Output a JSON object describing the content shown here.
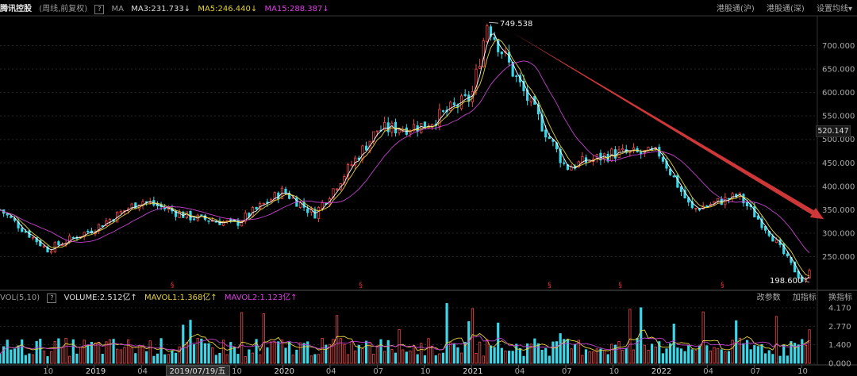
{
  "header": {
    "stock_name": "腾讯控股",
    "mode": "(周线,前复权)",
    "help_icon": "?",
    "ma_label": "MA",
    "ma3": "MA3:231.733↓",
    "ma5": "MA5:246.440↓",
    "ma15": "MA15:288.387↓",
    "links": [
      "港股通(沪)",
      "港股通(深)",
      "设置均线▾"
    ]
  },
  "volume_header": {
    "label": "VOL(5,10)",
    "help_icon": "?",
    "volume": "VOLUME:2.512亿↑",
    "mavol1": "MAVOL1:1.368亿↑",
    "mavol2": "MAVOL2:1.123亿↑",
    "links": [
      "改参数",
      "加指标",
      "换指标"
    ]
  },
  "annotations": {
    "high": "749.538",
    "low": "198.600",
    "current_price": "520.147",
    "cursor_date": "2019/07/19/五",
    "dividend_marker": "§"
  },
  "colors": {
    "up": "#f04848",
    "down": "#3ad7e8",
    "ma3": "#ffffff",
    "ma5": "#e6d23a",
    "ma15": "#c640d0",
    "trend_arrow": "#e03c3c"
  },
  "chart_data": [
    {
      "type": "candlestick",
      "title": "",
      "yticks": [
        250,
        300,
        350,
        400,
        450,
        500,
        550,
        600,
        650,
        700
      ],
      "ytick_labels": [
        "250.000",
        "300.000",
        "350.000",
        "400.000",
        "450.000",
        "500.000",
        "550.000",
        "600.000",
        "650.000",
        "700.000"
      ],
      "ylim": [
        195,
        760
      ],
      "xtick_labels": [
        "10",
        "2019",
        "04",
        "07",
        "10",
        "2020",
        "04",
        "07",
        "10",
        "2021",
        "04",
        "07",
        "10",
        "2022",
        "04",
        "07",
        "10"
      ],
      "price_path_approx": [
        {
          "date": "2018-07",
          "close": 350
        },
        {
          "date": "2018-10",
          "close": 265
        },
        {
          "date": "2019-01",
          "close": 310
        },
        {
          "date": "2019-04",
          "close": 370
        },
        {
          "date": "2019-07",
          "close": 335
        },
        {
          "date": "2019-10",
          "close": 320
        },
        {
          "date": "2020-01",
          "close": 390
        },
        {
          "date": "2020-03",
          "close": 340
        },
        {
          "date": "2020-07",
          "close": 520
        },
        {
          "date": "2020-10",
          "close": 530
        },
        {
          "date": "2021-01",
          "close": 590
        },
        {
          "date": "2021-02",
          "close": 749.538
        },
        {
          "date": "2021-04",
          "close": 620
        },
        {
          "date": "2021-07",
          "close": 440
        },
        {
          "date": "2021-10",
          "close": 470
        },
        {
          "date": "2022-01",
          "close": 470
        },
        {
          "date": "2022-03",
          "close": 350
        },
        {
          "date": "2022-06",
          "close": 380
        },
        {
          "date": "2022-08",
          "close": 300
        },
        {
          "date": "2022-10",
          "close": 198.6
        }
      ],
      "high": 749.538,
      "low": 198.6
    },
    {
      "type": "bar",
      "title": "",
      "yticks": [
        0,
        1.4,
        2.77,
        4.17
      ],
      "ytick_labels": [
        "0.000",
        "1.400",
        "2.770",
        "4.170"
      ],
      "ylim": [
        0,
        4.4
      ]
    }
  ]
}
